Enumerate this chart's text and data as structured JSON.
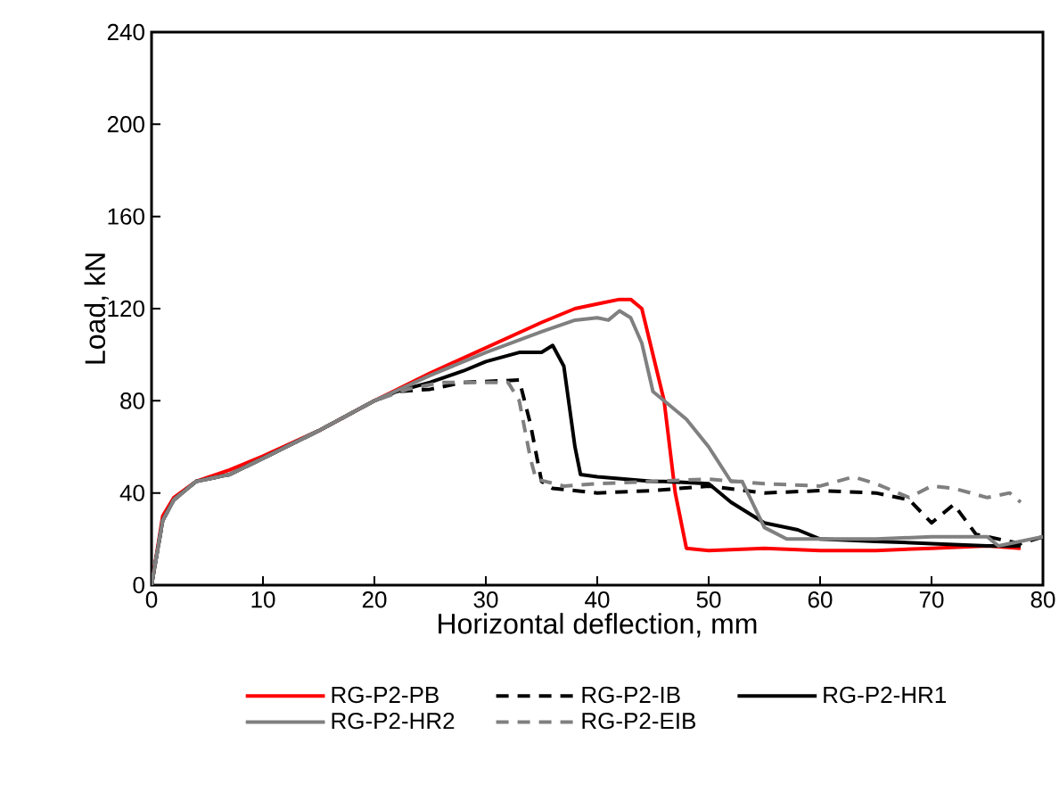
{
  "chart_data": {
    "type": "line",
    "xlabel": "Horizontal deflection, mm",
    "ylabel": "Load, kN",
    "xlim": [
      0,
      80
    ],
    "ylim": [
      0,
      240
    ],
    "xticks": [
      0,
      10,
      20,
      30,
      40,
      50,
      60,
      70,
      80
    ],
    "yticks": [
      0,
      40,
      80,
      120,
      160,
      200,
      240
    ],
    "grid": false,
    "legend": "bottom",
    "marker": "none",
    "series": [
      {
        "name": "RG-P2-PB",
        "color": "#ff0000",
        "line_style": "solid",
        "x": [
          0,
          1,
          2,
          4,
          7,
          10,
          15,
          20,
          25,
          30,
          35,
          38,
          40,
          42,
          43,
          44,
          46,
          47,
          48,
          50,
          55,
          60,
          65,
          70,
          75,
          78
        ],
        "values": [
          0,
          30,
          38,
          45,
          50,
          56,
          67,
          80,
          92,
          103,
          114,
          120,
          122,
          124,
          124,
          120,
          80,
          40,
          16,
          15,
          16,
          15,
          15,
          16,
          17,
          16
        ]
      },
      {
        "name": "RG-P2-IB",
        "color": "#000000",
        "line_style": "dashed",
        "x": [
          0,
          1,
          2,
          4,
          7,
          10,
          15,
          20,
          22,
          25,
          28,
          33,
          34,
          35,
          36,
          40,
          45,
          50,
          55,
          60,
          65,
          68,
          70,
          72,
          74,
          76,
          78,
          80
        ],
        "values": [
          0,
          28,
          37,
          45,
          48,
          55,
          67,
          80,
          84,
          85,
          88,
          89,
          70,
          45,
          42,
          40,
          41,
          43,
          40,
          41,
          40,
          37,
          27,
          35,
          22,
          20,
          18,
          21
        ]
      },
      {
        "name": "RG-P2-HR1",
        "color": "#000000",
        "line_style": "solid",
        "x": [
          0,
          1,
          2,
          4,
          7,
          10,
          15,
          20,
          22,
          25,
          28,
          30,
          33,
          35,
          36,
          37,
          38,
          38.5,
          40,
          45,
          46,
          50,
          52,
          54,
          55,
          58,
          60,
          65,
          70,
          75,
          78
        ],
        "values": [
          0,
          28,
          37,
          45,
          48,
          55,
          67,
          80,
          84,
          88,
          93,
          97,
          101,
          101,
          104,
          95,
          60,
          48,
          47,
          45,
          45,
          44,
          36,
          30,
          27,
          24,
          20,
          19,
          18,
          17,
          17
        ]
      },
      {
        "name": "RG-P2-HR2",
        "color": "#808080",
        "line_style": "solid",
        "x": [
          0,
          1,
          2,
          4,
          7,
          10,
          15,
          20,
          25,
          30,
          35,
          38,
          40,
          41,
          42,
          43,
          44,
          45,
          46,
          48,
          50,
          52,
          53,
          55,
          57,
          60,
          65,
          70,
          75,
          76,
          80
        ],
        "values": [
          0,
          28,
          37,
          45,
          48,
          55,
          67,
          80,
          91,
          101,
          110,
          115,
          116,
          115,
          119,
          116,
          105,
          84,
          80,
          72,
          60,
          45,
          45,
          25,
          20,
          20,
          20,
          21,
          21,
          17,
          21
        ]
      },
      {
        "name": "RG-P2-EIB",
        "color": "#808080",
        "line_style": "dashed",
        "x": [
          0,
          1,
          2,
          4,
          7,
          10,
          15,
          20,
          23,
          26,
          30,
          32,
          33,
          34,
          34.5,
          37,
          40,
          45,
          50,
          55,
          60,
          63,
          65,
          68,
          70,
          72,
          75,
          77,
          78
        ],
        "values": [
          0,
          28,
          37,
          45,
          48,
          55,
          67,
          80,
          85,
          88,
          88,
          88,
          80,
          55,
          46,
          43,
          44,
          45,
          46,
          44,
          43,
          47,
          44,
          38,
          43,
          42,
          38,
          40,
          36
        ]
      }
    ]
  }
}
